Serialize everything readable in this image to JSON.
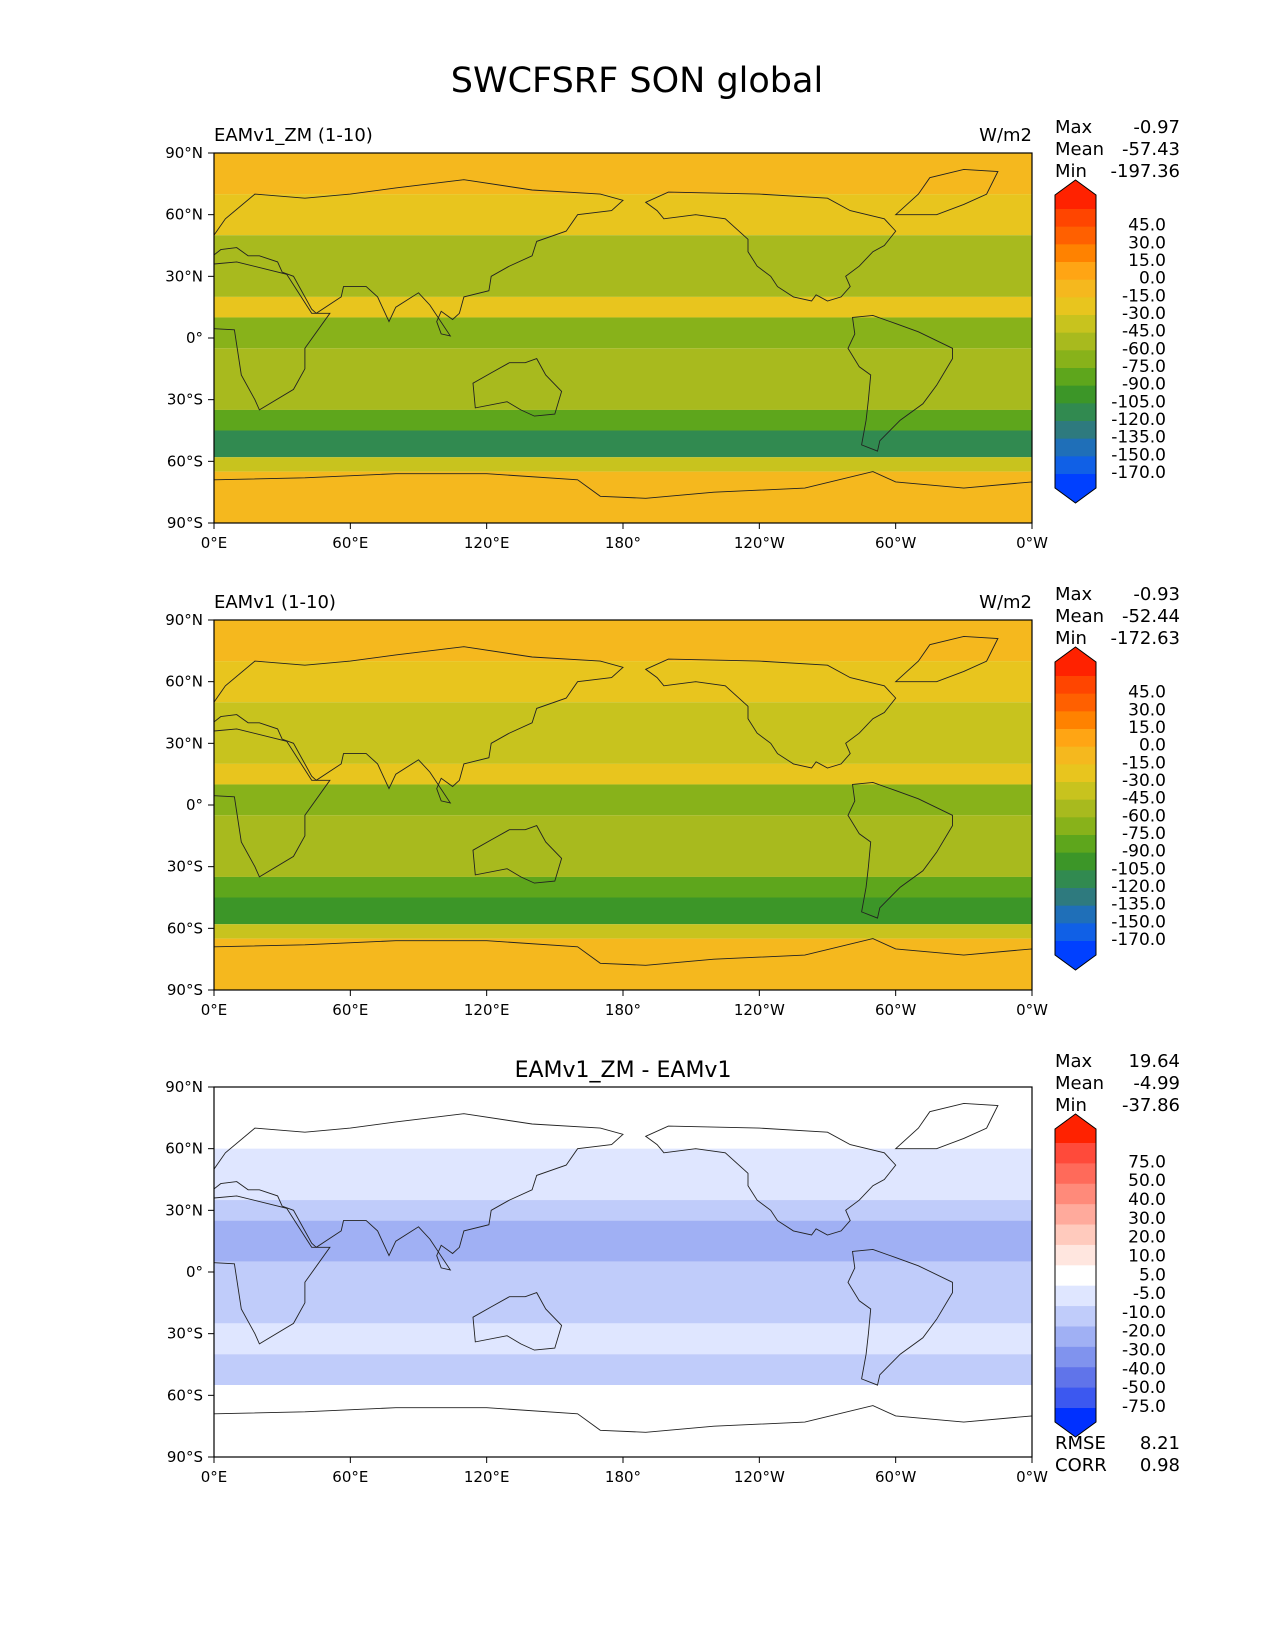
{
  "title": "SWCFSRF SON global",
  "lat_ticks": [
    "90°N",
    "60°N",
    "30°N",
    "0°",
    "30°S",
    "60°S",
    "90°S"
  ],
  "lon_ticks": [
    "0°E",
    "60°E",
    "120°E",
    "180°",
    "120°W",
    "60°W",
    "0°W"
  ],
  "panels": [
    {
      "label_left": "EAMv1_ZM (1-10)",
      "label_center": "",
      "units": "W/m2",
      "stats": [
        {
          "name": "Max",
          "value": "-0.97"
        },
        {
          "name": "Mean",
          "value": "-57.43"
        },
        {
          "name": "Min",
          "value": "-197.36"
        }
      ],
      "colorbar_labels": [
        "45.0",
        "30.0",
        "15.0",
        "0.0",
        "-15.0",
        "-30.0",
        "-45.0",
        "-60.0",
        "-75.0",
        "-90.0",
        "-105.0",
        "-120.0",
        "-135.0",
        "-150.0",
        "-170.0"
      ],
      "colorbar_colors": [
        "#ff2a00",
        "#ff4500",
        "#ff6000",
        "#ff8200",
        "#ffa514",
        "#f5b81e",
        "#e8c51e",
        "#c8c31e",
        "#a8ba1e",
        "#88b21a",
        "#5ea61c",
        "#3c9628",
        "#318a50",
        "#2e7a7e",
        "#1f6fb8",
        "#1060e6",
        "#0044ff"
      ],
      "maxmin_colors": {
        "max": "#ff2200",
        "min": "#0040ff"
      },
      "field": {
        "bands": [
          {
            "lat_from": 90,
            "lat_to": 70,
            "value": -25
          },
          {
            "lat_from": 70,
            "lat_to": 50,
            "value": -45
          },
          {
            "lat_from": 50,
            "lat_to": 20,
            "value": -75
          },
          {
            "lat_from": 20,
            "lat_to": 10,
            "value": -45
          },
          {
            "lat_from": 10,
            "lat_to": -5,
            "value": -90
          },
          {
            "lat_from": -5,
            "lat_to": -35,
            "value": -75
          },
          {
            "lat_from": -35,
            "lat_to": -45,
            "value": -105
          },
          {
            "lat_from": -45,
            "lat_to": -58,
            "value": -125
          },
          {
            "lat_from": -58,
            "lat_to": -65,
            "value": -60
          },
          {
            "lat_from": -65,
            "lat_to": -90,
            "value": -20
          }
        ]
      }
    },
    {
      "label_left": "EAMv1 (1-10)",
      "label_center": "",
      "units": "W/m2",
      "stats": [
        {
          "name": "Max",
          "value": "-0.93"
        },
        {
          "name": "Mean",
          "value": "-52.44"
        },
        {
          "name": "Min",
          "value": "-172.63"
        }
      ],
      "colorbar_labels": [
        "45.0",
        "30.0",
        "15.0",
        "0.0",
        "-15.0",
        "-30.0",
        "-45.0",
        "-60.0",
        "-75.0",
        "-90.0",
        "-105.0",
        "-120.0",
        "-135.0",
        "-150.0",
        "-170.0"
      ],
      "colorbar_colors": [
        "#ff2a00",
        "#ff4500",
        "#ff6000",
        "#ff8200",
        "#ffa514",
        "#f5b81e",
        "#e8c51e",
        "#c8c31e",
        "#a8ba1e",
        "#88b21a",
        "#5ea61c",
        "#3c9628",
        "#318a50",
        "#2e7a7e",
        "#1f6fb8",
        "#1060e6",
        "#0044ff"
      ],
      "maxmin_colors": {
        "max": "#ff2200",
        "min": "#0040ff"
      },
      "field": {
        "bands": [
          {
            "lat_from": 90,
            "lat_to": 70,
            "value": -25
          },
          {
            "lat_from": 70,
            "lat_to": 50,
            "value": -45
          },
          {
            "lat_from": 50,
            "lat_to": 20,
            "value": -60
          },
          {
            "lat_from": 20,
            "lat_to": 10,
            "value": -45
          },
          {
            "lat_from": 10,
            "lat_to": -5,
            "value": -80
          },
          {
            "lat_from": -5,
            "lat_to": -35,
            "value": -65
          },
          {
            "lat_from": -35,
            "lat_to": -45,
            "value": -95
          },
          {
            "lat_from": -45,
            "lat_to": -58,
            "value": -115
          },
          {
            "lat_from": -58,
            "lat_to": -65,
            "value": -50
          },
          {
            "lat_from": -65,
            "lat_to": -90,
            "value": -20
          }
        ]
      }
    },
    {
      "label_left": "",
      "label_center": "EAMv1_ZM - EAMv1",
      "units": "",
      "stats": [
        {
          "name": "Max",
          "value": "19.64"
        },
        {
          "name": "Mean",
          "value": "-4.99"
        },
        {
          "name": "Min",
          "value": "-37.86"
        }
      ],
      "colorbar_labels": [
        "75.0",
        "50.0",
        "40.0",
        "30.0",
        "20.0",
        "10.0",
        "5.0",
        "-5.0",
        "-10.0",
        "-20.0",
        "-30.0",
        "-40.0",
        "-50.0",
        "-75.0"
      ],
      "colorbar_colors": [
        "#ff2a10",
        "#ff4a3a",
        "#ff6a5a",
        "#ff8a7a",
        "#ffaa9c",
        "#ffcabd",
        "#ffe6df",
        "#ffffff",
        "#dfe6ff",
        "#c0ccfa",
        "#a0b0f4",
        "#8093ee",
        "#6074ea",
        "#3c58f0",
        "#1a3cff"
      ],
      "maxmin_colors": {
        "max": "#ff2200",
        "min": "#0030ff"
      },
      "field": {
        "bands": [
          {
            "lat_from": 90,
            "lat_to": 60,
            "value": 0
          },
          {
            "lat_from": 60,
            "lat_to": 35,
            "value": -8
          },
          {
            "lat_from": 35,
            "lat_to": 25,
            "value": -12
          },
          {
            "lat_from": 25,
            "lat_to": 5,
            "value": -25
          },
          {
            "lat_from": 5,
            "lat_to": -25,
            "value": -12
          },
          {
            "lat_from": -25,
            "lat_to": -40,
            "value": -8
          },
          {
            "lat_from": -40,
            "lat_to": -55,
            "value": -12
          },
          {
            "lat_from": -55,
            "lat_to": -90,
            "value": 0
          }
        ]
      },
      "extra_stats": [
        {
          "name": "RMSE",
          "value": "8.21"
        },
        {
          "name": "CORR",
          "value": "0.98"
        }
      ]
    }
  ]
}
